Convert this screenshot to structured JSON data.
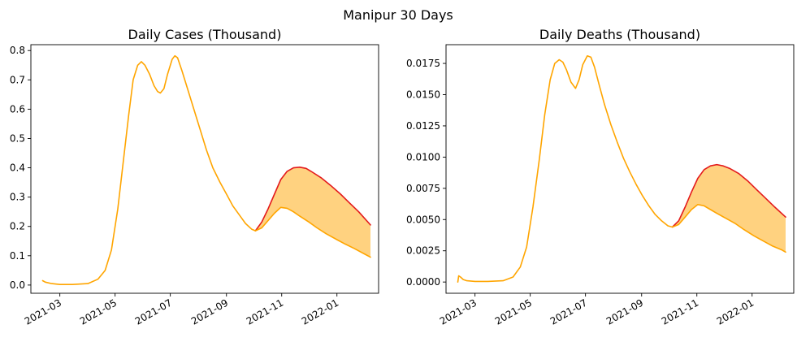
{
  "figure": {
    "suptitle": "Manipur 30 Days"
  },
  "colors": {
    "upper_line": "#e31a1c",
    "lower_line": "#ffa500",
    "band_fill": "#ffd280",
    "axes": "#000000",
    "background": "#ffffff"
  },
  "chart_data": [
    {
      "type": "line",
      "title": "Daily Cases (Thousand)",
      "xlabel": "",
      "ylabel": "",
      "x_type": "date",
      "xlim": [
        "2021-01-28",
        "2022-02-16"
      ],
      "ylim": [
        -0.028,
        0.82
      ],
      "x_ticks": [
        "2021-03",
        "2021-05",
        "2021-07",
        "2021-09",
        "2021-11",
        "2022-01"
      ],
      "x_tick_dates": [
        "2021-03-01",
        "2021-05-01",
        "2021-07-01",
        "2021-09-01",
        "2021-11-01",
        "2022-01-01"
      ],
      "y_ticks": [
        "0.0",
        "0.1",
        "0.2",
        "0.3",
        "0.4",
        "0.5",
        "0.6",
        "0.7",
        "0.8"
      ],
      "y_tick_values": [
        0,
        0.1,
        0.2,
        0.3,
        0.4,
        0.5,
        0.6,
        0.7,
        0.8
      ],
      "grid": false,
      "legend": "none",
      "series": [
        {
          "role": "history",
          "color": "#ffa500",
          "x": [
            "2021-02-10",
            "2021-02-13",
            "2021-02-20",
            "2021-03-01",
            "2021-03-15",
            "2021-04-01",
            "2021-04-12",
            "2021-04-20",
            "2021-04-27",
            "2021-05-04",
            "2021-05-10",
            "2021-05-16",
            "2021-05-21",
            "2021-05-26",
            "2021-05-30",
            "2021-06-03",
            "2021-06-08",
            "2021-06-13",
            "2021-06-17",
            "2021-06-20",
            "2021-06-24",
            "2021-06-28",
            "2021-07-03",
            "2021-07-06",
            "2021-07-09",
            "2021-07-14",
            "2021-07-20",
            "2021-07-27",
            "2021-08-03",
            "2021-08-10",
            "2021-08-17",
            "2021-08-25",
            "2021-09-01",
            "2021-09-08",
            "2021-09-15",
            "2021-09-22",
            "2021-09-29",
            "2021-10-03"
          ],
          "y": [
            0.015,
            0.01,
            0.005,
            0.002,
            0.002,
            0.005,
            0.02,
            0.05,
            0.12,
            0.26,
            0.42,
            0.58,
            0.7,
            0.75,
            0.762,
            0.75,
            0.72,
            0.68,
            0.66,
            0.655,
            0.67,
            0.72,
            0.77,
            0.782,
            0.775,
            0.73,
            0.67,
            0.6,
            0.53,
            0.46,
            0.4,
            0.35,
            0.31,
            0.27,
            0.24,
            0.21,
            0.19,
            0.185
          ]
        },
        {
          "role": "forecast-upper",
          "color": "#e31a1c",
          "x": [
            "2021-10-03",
            "2021-10-10",
            "2021-10-17",
            "2021-10-24",
            "2021-10-31",
            "2021-11-07",
            "2021-11-14",
            "2021-11-21",
            "2021-11-28",
            "2021-12-05",
            "2021-12-15",
            "2021-12-25",
            "2022-01-05",
            "2022-01-15",
            "2022-01-25",
            "2022-02-07"
          ],
          "y": [
            0.185,
            0.215,
            0.26,
            0.31,
            0.36,
            0.388,
            0.4,
            0.402,
            0.398,
            0.385,
            0.365,
            0.34,
            0.31,
            0.28,
            0.25,
            0.205
          ]
        },
        {
          "role": "forecast-lower",
          "color": "#ffa500",
          "x": [
            "2021-10-03",
            "2021-10-10",
            "2021-10-17",
            "2021-10-24",
            "2021-10-31",
            "2021-11-07",
            "2021-11-14",
            "2021-11-21",
            "2021-12-01",
            "2021-12-10",
            "2021-12-20",
            "2022-01-01",
            "2022-01-10",
            "2022-01-20",
            "2022-02-01",
            "2022-02-07"
          ],
          "y": [
            0.185,
            0.195,
            0.22,
            0.245,
            0.265,
            0.262,
            0.25,
            0.235,
            0.215,
            0.195,
            0.175,
            0.155,
            0.14,
            0.125,
            0.105,
            0.095
          ]
        }
      ]
    },
    {
      "type": "line",
      "title": "Daily Deaths (Thousand)",
      "xlabel": "",
      "ylabel": "",
      "x_type": "date",
      "xlim": [
        "2021-01-28",
        "2022-02-16"
      ],
      "ylim": [
        -0.0009,
        0.019
      ],
      "x_ticks": [
        "2021-03",
        "2021-05",
        "2021-07",
        "2021-09",
        "2021-11",
        "2022-01"
      ],
      "x_tick_dates": [
        "2021-03-01",
        "2021-05-01",
        "2021-07-01",
        "2021-09-01",
        "2021-11-01",
        "2022-01-01"
      ],
      "y_ticks": [
        "0.0000",
        "0.0025",
        "0.0050",
        "0.0075",
        "0.0100",
        "0.0125",
        "0.0150",
        "0.0175"
      ],
      "y_tick_values": [
        0,
        0.0025,
        0.005,
        0.0075,
        0.01,
        0.0125,
        0.015,
        0.0175
      ],
      "grid": false,
      "legend": "none",
      "series": [
        {
          "role": "history",
          "color": "#ffa500",
          "x": [
            "2021-02-10",
            "2021-02-11",
            "2021-02-13",
            "2021-02-16",
            "2021-02-20",
            "2021-03-01",
            "2021-03-15",
            "2021-04-01",
            "2021-04-12",
            "2021-04-20",
            "2021-04-27",
            "2021-05-04",
            "2021-05-11",
            "2021-05-17",
            "2021-05-23",
            "2021-05-28",
            "2021-06-02",
            "2021-06-06",
            "2021-06-10",
            "2021-06-15",
            "2021-06-20",
            "2021-06-24",
            "2021-06-28",
            "2021-07-03",
            "2021-07-07",
            "2021-07-11",
            "2021-07-16",
            "2021-07-22",
            "2021-07-29",
            "2021-08-05",
            "2021-08-12",
            "2021-08-19",
            "2021-08-26",
            "2021-09-02",
            "2021-09-09",
            "2021-09-16",
            "2021-09-23",
            "2021-09-30",
            "2021-10-05"
          ],
          "y": [
            0.0,
            0.0005,
            0.0004,
            0.0002,
            0.0001,
            5e-05,
            5e-05,
            0.0001,
            0.0004,
            0.0012,
            0.0028,
            0.006,
            0.0098,
            0.0134,
            0.0162,
            0.0175,
            0.0178,
            0.0176,
            0.017,
            0.016,
            0.0155,
            0.0162,
            0.0174,
            0.0181,
            0.018,
            0.0172,
            0.0158,
            0.0142,
            0.0126,
            0.0112,
            0.0099,
            0.0088,
            0.0078,
            0.0069,
            0.0061,
            0.0054,
            0.0049,
            0.0045,
            0.0044
          ]
        },
        {
          "role": "forecast-upper",
          "color": "#e31a1c",
          "x": [
            "2021-10-05",
            "2021-10-12",
            "2021-10-19",
            "2021-10-26",
            "2021-11-02",
            "2021-11-09",
            "2021-11-16",
            "2021-11-23",
            "2021-11-30",
            "2021-12-07",
            "2021-12-17",
            "2021-12-27",
            "2022-01-06",
            "2022-01-16",
            "2022-01-26",
            "2022-02-07"
          ],
          "y": [
            0.0044,
            0.0049,
            0.006,
            0.0072,
            0.0083,
            0.009,
            0.0093,
            0.0094,
            0.0093,
            0.0091,
            0.0087,
            0.0081,
            0.0074,
            0.0067,
            0.006,
            0.0052
          ]
        },
        {
          "role": "forecast-lower",
          "color": "#ffa500",
          "x": [
            "2021-10-05",
            "2021-10-12",
            "2021-10-19",
            "2021-10-26",
            "2021-11-02",
            "2021-11-09",
            "2021-11-16",
            "2021-11-23",
            "2021-12-03",
            "2021-12-13",
            "2021-12-23",
            "2022-01-03",
            "2022-01-13",
            "2022-01-23",
            "2022-02-02",
            "2022-02-07"
          ],
          "y": [
            0.0044,
            0.0046,
            0.0052,
            0.0058,
            0.0062,
            0.0061,
            0.0058,
            0.0055,
            0.0051,
            0.0047,
            0.0042,
            0.0037,
            0.0033,
            0.0029,
            0.0026,
            0.0024
          ]
        }
      ]
    }
  ]
}
